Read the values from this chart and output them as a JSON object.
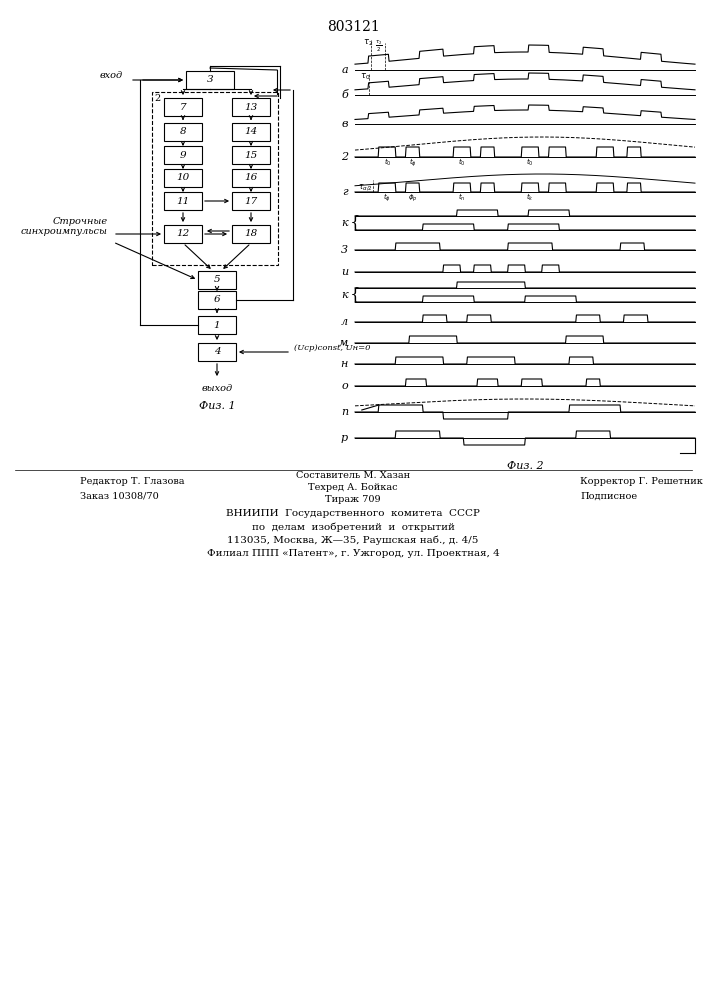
{
  "title": "803121",
  "fig1_label": "Физ. 1",
  "fig2_label": "Физ. 2",
  "background_color": "#ffffff",
  "line_color": "#000000",
  "input_label": "вход",
  "output_label": "выход",
  "sync_label_1": "Строчные",
  "sync_label_2": "синхроимпульсы",
  "const_label": "(Uср)const, Uн=0",
  "footer_left1": "Редактор Т. Глазова",
  "footer_left2": "Заказ 10308/70",
  "footer_center1": "Составитель М. Хазан",
  "footer_center2": "Техред А. Бойкас",
  "footer_center3": "Тираж 709",
  "footer_right1": "Корректор Г. Решетник",
  "footer_right2": "Подписное",
  "footer_org1": "ВНИИПИ  Государственного  комитета  СССР",
  "footer_org2": "по  делам  изобретений  и  открытий",
  "footer_org3": "113035, Москва, Ж—35, Раушская наб., д. 4/5",
  "footer_org4": "Филиал ППП «Патент», г. Ужгород, ул. Проектная, 4"
}
